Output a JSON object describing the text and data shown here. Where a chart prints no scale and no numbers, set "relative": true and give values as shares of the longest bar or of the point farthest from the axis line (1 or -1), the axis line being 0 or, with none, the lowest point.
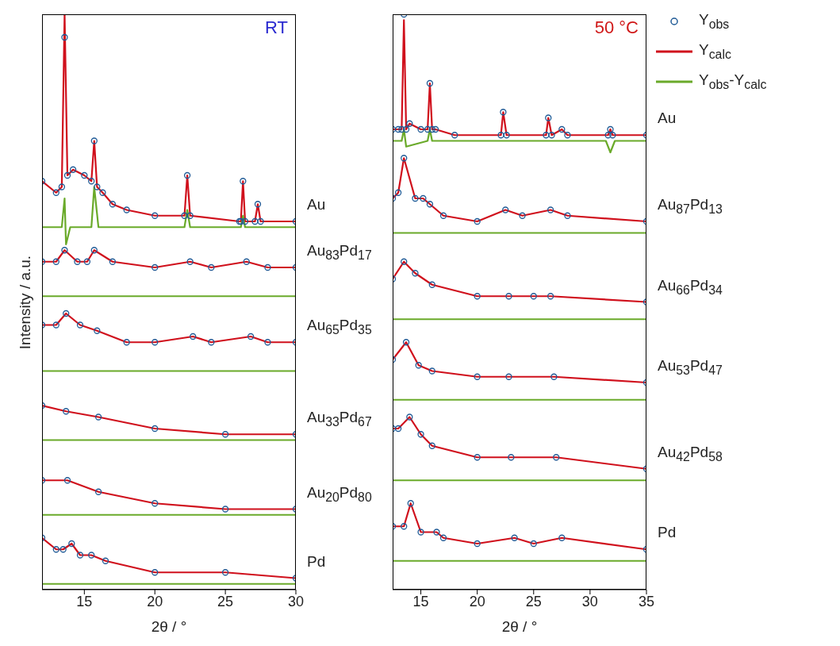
{
  "chart_data": [
    {
      "type": "line",
      "title": "RT",
      "xlabel": "2θ / °",
      "ylabel": "Intensity / a.u.",
      "relative": true,
      "xlim": [
        12,
        30
      ],
      "xticks": [
        15,
        20,
        25,
        30
      ],
      "annotations": [
        "Au",
        "Au$_{83}$Pd$_{17}$",
        "Au$_{65}$Pd$_{35}$",
        "Au$_{33}$Pd$_{67}$",
        "Au$_{20}$Pd$_{80}$",
        "Pd"
      ],
      "series": [
        {
          "type": "scatter",
          "marker": "circle",
          "color": "#1f5a96",
          "x": [
            12,
            13,
            13.4,
            13.6,
            13.8,
            14.2,
            15,
            15.5,
            15.7,
            15.9,
            16.3,
            17,
            18,
            20,
            22.1,
            22.3,
            22.5,
            26,
            26.1,
            26.25,
            26.4,
            27.1,
            27.3,
            27.5,
            30
          ],
          "values": [
            0.71,
            0.69,
            0.7,
            0.96,
            0.72,
            0.73,
            0.72,
            0.71,
            0.78,
            0.7,
            0.69,
            0.67,
            0.66,
            0.65,
            0.65,
            0.72,
            0.65,
            0.64,
            0.64,
            0.71,
            0.64,
            0.64,
            0.67,
            0.64,
            0.64
          ]
        },
        {
          "type": "line",
          "color": "#d0101c",
          "x": [
            12,
            13,
            13.4,
            13.6,
            13.8,
            14.2,
            15,
            15.5,
            15.7,
            15.9,
            16.3,
            17,
            18,
            20,
            22.1,
            22.3,
            22.5,
            26,
            26.1,
            26.25,
            26.4,
            27.1,
            27.3,
            27.5,
            30
          ],
          "values": [
            0.71,
            0.69,
            0.7,
            1,
            0.72,
            0.73,
            0.72,
            0.71,
            0.78,
            0.7,
            0.69,
            0.67,
            0.66,
            0.65,
            0.65,
            0.72,
            0.65,
            0.64,
            0.64,
            0.71,
            0.64,
            0.64,
            0.67,
            0.64,
            0.64
          ]
        },
        {
          "type": "line",
          "color": "#6aaa2a",
          "x": [
            12,
            13,
            13.4,
            13.6,
            13.7,
            14,
            15.5,
            15.7,
            16,
            22.1,
            22.3,
            22.5,
            26.1,
            26.25,
            26.4,
            30
          ],
          "values": [
            0.63,
            0.63,
            0.63,
            0.68,
            0.6,
            0.63,
            0.63,
            0.7,
            0.63,
            0.63,
            0.66,
            0.63,
            0.63,
            0.65,
            0.63,
            0.63
          ]
        },
        {
          "type": "scatter",
          "marker": "circle",
          "color": "#1f5a96",
          "x": [
            12,
            13,
            13.6,
            14.5,
            15.2,
            15.7,
            17,
            20,
            22.5,
            24,
            26.5,
            28,
            30
          ],
          "values": [
            0.57,
            0.57,
            0.59,
            0.57,
            0.57,
            0.59,
            0.57,
            0.56,
            0.57,
            0.56,
            0.57,
            0.56,
            0.56
          ]
        },
        {
          "type": "line",
          "color": "#d0101c",
          "x": [
            12,
            13,
            13.6,
            14.5,
            15.2,
            15.7,
            17,
            20,
            22.5,
            24,
            26.5,
            28,
            30
          ],
          "values": [
            0.57,
            0.57,
            0.59,
            0.57,
            0.57,
            0.59,
            0.57,
            0.56,
            0.57,
            0.56,
            0.57,
            0.56,
            0.56
          ]
        },
        {
          "type": "line",
          "color": "#6aaa2a",
          "x": [
            12,
            21,
            30
          ],
          "values": [
            0.51,
            0.51,
            0.51
          ]
        },
        {
          "type": "scatter",
          "marker": "circle",
          "color": "#1f5a96",
          "x": [
            12,
            13,
            13.7,
            14.7,
            15.9,
            18,
            20,
            22.7,
            24,
            26.8,
            28,
            30
          ],
          "values": [
            0.46,
            0.46,
            0.48,
            0.46,
            0.45,
            0.43,
            0.43,
            0.44,
            0.43,
            0.44,
            0.43,
            0.43
          ]
        },
        {
          "type": "line",
          "color": "#d0101c",
          "x": [
            12,
            13,
            13.7,
            14.7,
            15.9,
            18,
            20,
            22.7,
            24,
            26.8,
            28,
            30
          ],
          "values": [
            0.46,
            0.46,
            0.48,
            0.46,
            0.45,
            0.43,
            0.43,
            0.44,
            0.43,
            0.44,
            0.43,
            0.43
          ]
        },
        {
          "type": "line",
          "color": "#6aaa2a",
          "x": [
            12,
            21,
            30
          ],
          "values": [
            0.38,
            0.38,
            0.38
          ]
        },
        {
          "type": "scatter",
          "marker": "circle",
          "color": "#1f5a96",
          "x": [
            12,
            13.7,
            16,
            20,
            25,
            30
          ],
          "values": [
            0.32,
            0.31,
            0.3,
            0.28,
            0.27,
            0.27
          ]
        },
        {
          "type": "line",
          "color": "#d0101c",
          "x": [
            12,
            13.7,
            16,
            20,
            25,
            30
          ],
          "values": [
            0.32,
            0.31,
            0.3,
            0.28,
            0.27,
            0.27
          ]
        },
        {
          "type": "line",
          "color": "#6aaa2a",
          "x": [
            12,
            21,
            30
          ],
          "values": [
            0.26,
            0.26,
            0.26
          ]
        },
        {
          "type": "scatter",
          "marker": "circle",
          "color": "#1f5a96",
          "x": [
            12,
            13.8,
            16,
            20,
            25,
            30
          ],
          "values": [
            0.19,
            0.19,
            0.17,
            0.15,
            0.14,
            0.14
          ]
        },
        {
          "type": "line",
          "color": "#d0101c",
          "x": [
            12,
            13.8,
            16,
            20,
            25,
            30
          ],
          "values": [
            0.19,
            0.19,
            0.17,
            0.15,
            0.14,
            0.14
          ]
        },
        {
          "type": "line",
          "color": "#6aaa2a",
          "x": [
            12,
            21,
            30
          ],
          "values": [
            0.13,
            0.13,
            0.13
          ]
        },
        {
          "type": "scatter",
          "marker": "circle",
          "color": "#1f5a96",
          "x": [
            12,
            13,
            13.5,
            14.1,
            14.7,
            15.5,
            16.5,
            20,
            25,
            30
          ],
          "values": [
            0.09,
            0.07,
            0.07,
            0.08,
            0.06,
            0.06,
            0.05,
            0.03,
            0.03,
            0.02
          ]
        },
        {
          "type": "line",
          "color": "#d0101c",
          "x": [
            12,
            13,
            13.5,
            14.1,
            14.7,
            15.5,
            16.5,
            20,
            25,
            30
          ],
          "values": [
            0.09,
            0.07,
            0.07,
            0.08,
            0.06,
            0.06,
            0.05,
            0.03,
            0.03,
            0.02
          ]
        },
        {
          "type": "line",
          "color": "#6aaa2a",
          "x": [
            12,
            21,
            30
          ],
          "values": [
            0.01,
            0.01,
            0.01
          ]
        }
      ]
    },
    {
      "type": "line",
      "title": "50 °C",
      "xlabel": "2θ / °",
      "relative": true,
      "xlim": [
        12.5,
        35
      ],
      "xticks": [
        15,
        20,
        25,
        30,
        35
      ],
      "legend": "top right",
      "annotations": [
        "Au",
        "Au$_{87}$Pd$_{13}$",
        "Au$_{66}$Pd$_{34}$",
        "Au$_{53}$Pd$_{47}$",
        "Au$_{42}$Pd$_{58}$",
        "Pd"
      ],
      "series": [
        {
          "type": "scatter",
          "marker": "circle",
          "name": "Y$_{obs}$",
          "color": "#1f5a96",
          "x": [
            12.5,
            13,
            13.3,
            13.5,
            13.7,
            14,
            15,
            15.6,
            15.8,
            16,
            16.3,
            18,
            22.1,
            22.3,
            22.6,
            26.1,
            26.3,
            26.6,
            27.5,
            28,
            31.6,
            31.8,
            32,
            35
          ],
          "values": [
            0.8,
            0.8,
            0.8,
            1,
            0.8,
            0.81,
            0.8,
            0.8,
            0.88,
            0.8,
            0.8,
            0.79,
            0.79,
            0.83,
            0.79,
            0.79,
            0.82,
            0.79,
            0.8,
            0.79,
            0.79,
            0.8,
            0.79,
            0.79
          ]
        },
        {
          "type": "line",
          "name": "Y$_{calc}$",
          "color": "#d0101c",
          "x": [
            12.5,
            13,
            13.3,
            13.5,
            13.7,
            14,
            15,
            15.6,
            15.8,
            16,
            16.3,
            18,
            22.1,
            22.3,
            22.6,
            26.1,
            26.3,
            26.6,
            27.5,
            28,
            31.6,
            31.8,
            32,
            35
          ],
          "values": [
            0.8,
            0.8,
            0.8,
            0.99,
            0.8,
            0.81,
            0.8,
            0.8,
            0.88,
            0.8,
            0.8,
            0.79,
            0.79,
            0.83,
            0.79,
            0.79,
            0.82,
            0.79,
            0.8,
            0.79,
            0.79,
            0.8,
            0.79,
            0.79
          ]
        },
        {
          "type": "line",
          "name": "Y$_{obs}$-Y$_{calc}$",
          "color": "#6aaa2a",
          "x": [
            12.5,
            13.3,
            13.5,
            13.7,
            15.6,
            15.8,
            16,
            31.4,
            31.8,
            32.2,
            35
          ],
          "values": [
            0.78,
            0.78,
            0.8,
            0.77,
            0.78,
            0.8,
            0.78,
            0.78,
            0.76,
            0.78,
            0.78
          ]
        },
        {
          "type": "scatter",
          "marker": "circle",
          "color": "#1f5a96",
          "x": [
            12.5,
            13,
            13.5,
            14.5,
            15.2,
            15.8,
            17,
            20,
            22.5,
            24,
            26.5,
            28,
            35
          ],
          "values": [
            0.68,
            0.69,
            0.75,
            0.68,
            0.68,
            0.67,
            0.65,
            0.64,
            0.66,
            0.65,
            0.66,
            0.65,
            0.64
          ]
        },
        {
          "type": "line",
          "color": "#d0101c",
          "x": [
            12.5,
            13,
            13.5,
            14.5,
            15.2,
            15.8,
            17,
            20,
            22.5,
            24,
            26.5,
            28,
            35
          ],
          "values": [
            0.68,
            0.69,
            0.75,
            0.68,
            0.68,
            0.67,
            0.65,
            0.64,
            0.66,
            0.65,
            0.66,
            0.65,
            0.64
          ]
        },
        {
          "type": "line",
          "color": "#6aaa2a",
          "x": [
            12.5,
            24,
            35
          ],
          "values": [
            0.62,
            0.62,
            0.62
          ]
        },
        {
          "type": "scatter",
          "marker": "circle",
          "color": "#1f5a96",
          "x": [
            12.5,
            13.5,
            14.5,
            16,
            20,
            22.8,
            25,
            26.5,
            35
          ],
          "values": [
            0.54,
            0.57,
            0.55,
            0.53,
            0.51,
            0.51,
            0.51,
            0.51,
            0.5
          ]
        },
        {
          "type": "line",
          "color": "#d0101c",
          "x": [
            12.5,
            13.5,
            14.5,
            16,
            20,
            22.8,
            25,
            26.5,
            35
          ],
          "values": [
            0.54,
            0.57,
            0.55,
            0.53,
            0.51,
            0.51,
            0.51,
            0.51,
            0.5
          ]
        },
        {
          "type": "line",
          "color": "#6aaa2a",
          "x": [
            12.5,
            24,
            35
          ],
          "values": [
            0.47,
            0.47,
            0.47
          ]
        },
        {
          "type": "scatter",
          "marker": "circle",
          "color": "#1f5a96",
          "x": [
            12.5,
            13.7,
            14.8,
            16,
            20,
            22.8,
            26.8,
            35
          ],
          "values": [
            0.4,
            0.43,
            0.39,
            0.38,
            0.37,
            0.37,
            0.37,
            0.36
          ]
        },
        {
          "type": "line",
          "color": "#d0101c",
          "x": [
            12.5,
            13.7,
            14.8,
            16,
            20,
            22.8,
            26.8,
            35
          ],
          "values": [
            0.4,
            0.43,
            0.39,
            0.38,
            0.37,
            0.37,
            0.37,
            0.36
          ]
        },
        {
          "type": "line",
          "color": "#6aaa2a",
          "x": [
            12.5,
            24,
            35
          ],
          "values": [
            0.33,
            0.33,
            0.33
          ]
        },
        {
          "type": "scatter",
          "marker": "circle",
          "color": "#1f5a96",
          "x": [
            12.5,
            13,
            14,
            15,
            16,
            20,
            23,
            27,
            35
          ],
          "values": [
            0.28,
            0.28,
            0.3,
            0.27,
            0.25,
            0.23,
            0.23,
            0.23,
            0.21
          ]
        },
        {
          "type": "line",
          "color": "#d0101c",
          "x": [
            12.5,
            13,
            14,
            15,
            16,
            20,
            23,
            27,
            35
          ],
          "values": [
            0.28,
            0.28,
            0.3,
            0.27,
            0.25,
            0.23,
            0.23,
            0.23,
            0.21
          ]
        },
        {
          "type": "line",
          "color": "#6aaa2a",
          "x": [
            12.5,
            24,
            35
          ],
          "values": [
            0.19,
            0.19,
            0.19
          ]
        },
        {
          "type": "scatter",
          "marker": "circle",
          "color": "#1f5a96",
          "x": [
            12.5,
            13.5,
            14.1,
            15,
            16.4,
            17,
            20,
            23.3,
            25,
            27.5,
            35
          ],
          "values": [
            0.11,
            0.11,
            0.15,
            0.1,
            0.1,
            0.09,
            0.08,
            0.09,
            0.08,
            0.09,
            0.07
          ]
        },
        {
          "type": "line",
          "color": "#d0101c",
          "x": [
            12.5,
            13.5,
            14.1,
            15,
            16.4,
            17,
            20,
            23.3,
            25,
            27.5,
            35
          ],
          "values": [
            0.11,
            0.11,
            0.15,
            0.1,
            0.1,
            0.09,
            0.08,
            0.09,
            0.08,
            0.09,
            0.07
          ]
        },
        {
          "type": "line",
          "color": "#6aaa2a",
          "x": [
            12.5,
            24,
            35
          ],
          "values": [
            0.05,
            0.05,
            0.05
          ]
        }
      ]
    }
  ]
}
